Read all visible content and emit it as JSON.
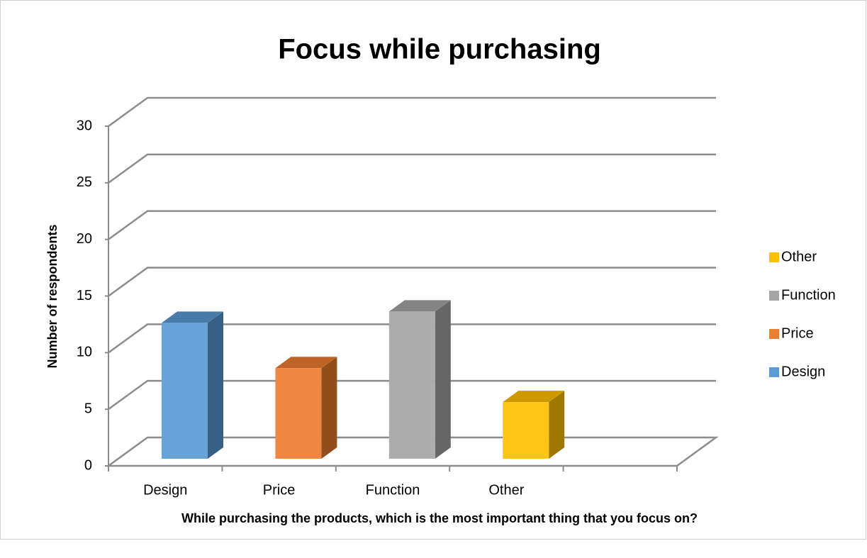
{
  "chart_data": {
    "type": "bar3d",
    "title": "Focus while purchasing",
    "x_label": "While purchasing the products, which is the most important thing that you focus on?",
    "y_label": "Number of respondents",
    "categories": [
      "Design",
      "Price",
      "Function",
      "Other"
    ],
    "values": [
      12,
      8,
      13,
      5
    ],
    "colors": [
      "#5b9bd5",
      "#ed7d31",
      "#a5a5a5",
      "#ffc000"
    ],
    "ylim": [
      0,
      30
    ],
    "yticks": [
      0,
      5,
      10,
      15,
      20,
      25,
      30
    ],
    "grid": true,
    "legend": "right"
  }
}
